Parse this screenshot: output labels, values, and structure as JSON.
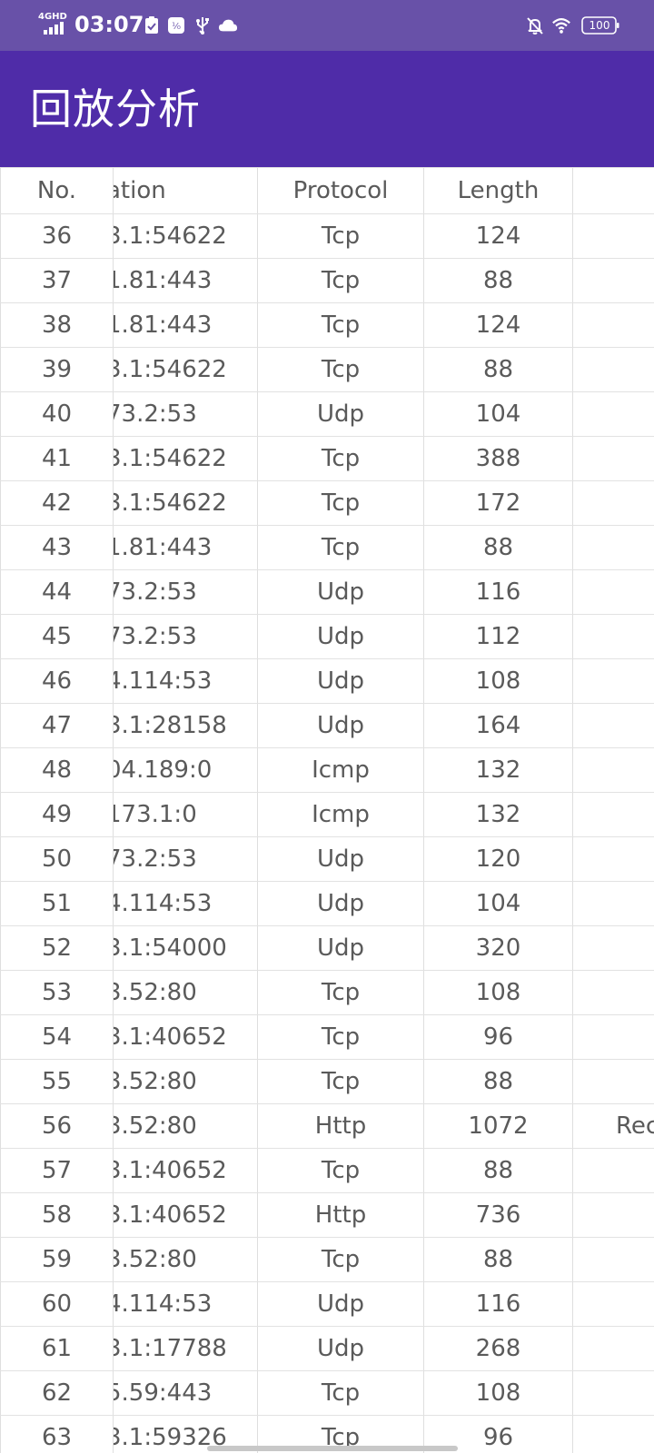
{
  "status_bar": {
    "network": "4GHD",
    "time": "03:07",
    "battery": "100",
    "colors": {
      "background": "#6851a8",
      "foreground": "#ffffff"
    },
    "icons": [
      "signal-icon",
      "task-check-icon",
      "data-saver-icon",
      "usb-icon",
      "cloud-icon",
      "notifications-off-icon",
      "wifi-icon",
      "battery-icon"
    ]
  },
  "app_bar": {
    "title": "回放分析",
    "background": "#4f2ca8"
  },
  "table": {
    "headers": {
      "no": "No.",
      "destination": "ation",
      "protocol": "Protocol",
      "length": "Length",
      "info": ""
    },
    "rows": [
      {
        "no": "36",
        "destination": "3.1:54622",
        "protocol": "Tcp",
        "length": "124",
        "info": ""
      },
      {
        "no": "37",
        "destination": "1.81:443",
        "protocol": "Tcp",
        "length": "88",
        "info": ""
      },
      {
        "no": "38",
        "destination": "1.81:443",
        "protocol": "Tcp",
        "length": "124",
        "info": ""
      },
      {
        "no": "39",
        "destination": "3.1:54622",
        "protocol": "Tcp",
        "length": "88",
        "info": ""
      },
      {
        "no": "40",
        "destination": "73.2:53",
        "protocol": "Udp",
        "length": "104",
        "info": ""
      },
      {
        "no": "41",
        "destination": "3.1:54622",
        "protocol": "Tcp",
        "length": "388",
        "info": ""
      },
      {
        "no": "42",
        "destination": "3.1:54622",
        "protocol": "Tcp",
        "length": "172",
        "info": ""
      },
      {
        "no": "43",
        "destination": "1.81:443",
        "protocol": "Tcp",
        "length": "88",
        "info": ""
      },
      {
        "no": "44",
        "destination": "73.2:53",
        "protocol": "Udp",
        "length": "116",
        "info": ""
      },
      {
        "no": "45",
        "destination": "73.2:53",
        "protocol": "Udp",
        "length": "112",
        "info": ""
      },
      {
        "no": "46",
        "destination": "4.114:53",
        "protocol": "Udp",
        "length": "108",
        "info": ""
      },
      {
        "no": "47",
        "destination": "3.1:28158",
        "protocol": "Udp",
        "length": "164",
        "info": ""
      },
      {
        "no": "48",
        "destination": "04.189:0",
        "protocol": "Icmp",
        "length": "132",
        "info": ""
      },
      {
        "no": "49",
        "destination": "173.1:0",
        "protocol": "Icmp",
        "length": "132",
        "info": ""
      },
      {
        "no": "50",
        "destination": "73.2:53",
        "protocol": "Udp",
        "length": "120",
        "info": ""
      },
      {
        "no": "51",
        "destination": "4.114:53",
        "protocol": "Udp",
        "length": "104",
        "info": ""
      },
      {
        "no": "52",
        "destination": "3.1:54000",
        "protocol": "Udp",
        "length": "320",
        "info": ""
      },
      {
        "no": "53",
        "destination": "3.52:80",
        "protocol": "Tcp",
        "length": "108",
        "info": ""
      },
      {
        "no": "54",
        "destination": "3.1:40652",
        "protocol": "Tcp",
        "length": "96",
        "info": ""
      },
      {
        "no": "55",
        "destination": "3.52:80",
        "protocol": "Tcp",
        "length": "88",
        "info": ""
      },
      {
        "no": "56",
        "destination": "3.52:80",
        "protocol": "Http",
        "length": "1072",
        "info": "Rec"
      },
      {
        "no": "57",
        "destination": "3.1:40652",
        "protocol": "Tcp",
        "length": "88",
        "info": ""
      },
      {
        "no": "58",
        "destination": "3.1:40652",
        "protocol": "Http",
        "length": "736",
        "info": ""
      },
      {
        "no": "59",
        "destination": "3.52:80",
        "protocol": "Tcp",
        "length": "88",
        "info": ""
      },
      {
        "no": "60",
        "destination": "4.114:53",
        "protocol": "Udp",
        "length": "116",
        "info": ""
      },
      {
        "no": "61",
        "destination": "3.1:17788",
        "protocol": "Udp",
        "length": "268",
        "info": ""
      },
      {
        "no": "62",
        "destination": "5.59:443",
        "protocol": "Tcp",
        "length": "108",
        "info": ""
      },
      {
        "no": "63",
        "destination": "3.1:59326",
        "protocol": "Tcp",
        "length": "96",
        "info": ""
      }
    ]
  }
}
